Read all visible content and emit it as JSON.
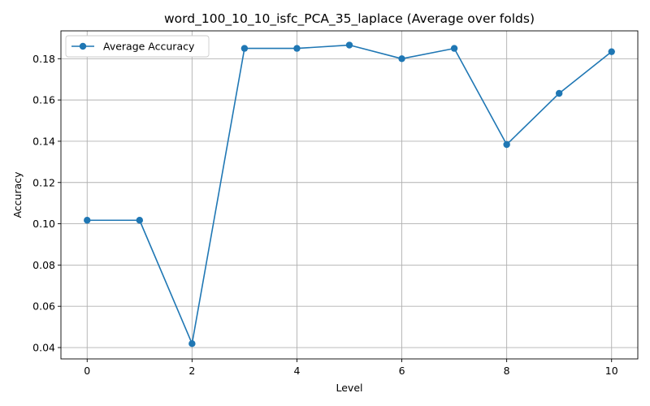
{
  "chart_data": {
    "type": "line",
    "title": "word_100_10_10_isfc_PCA_35_laplace (Average over folds)",
    "xlabel": "Level",
    "ylabel": "Accuracy",
    "xlim": [
      -0.5,
      10.5
    ],
    "ylim": [
      0.0345,
      0.1935
    ],
    "xticks": [
      0,
      2,
      4,
      6,
      8,
      10
    ],
    "xtick_labels": [
      "0",
      "2",
      "4",
      "6",
      "8",
      "10"
    ],
    "yticks": [
      0.04,
      0.06,
      0.08,
      0.1,
      0.12,
      0.14,
      0.16,
      0.18
    ],
    "ytick_labels": [
      "0.04",
      "0.06",
      "0.08",
      "0.10",
      "0.12",
      "0.14",
      "0.16",
      "0.18"
    ],
    "grid": true,
    "legend": {
      "position": "upper-left"
    },
    "series": [
      {
        "name": "Average Accuracy",
        "color": "#1f77b4",
        "marker": "circle",
        "x": [
          0,
          1,
          2,
          3,
          4,
          5,
          6,
          7,
          8,
          9,
          10
        ],
        "y": [
          0.1017,
          0.1017,
          0.0419,
          0.185,
          0.185,
          0.1866,
          0.18,
          0.185,
          0.1384,
          0.1632,
          0.1834
        ]
      }
    ]
  }
}
